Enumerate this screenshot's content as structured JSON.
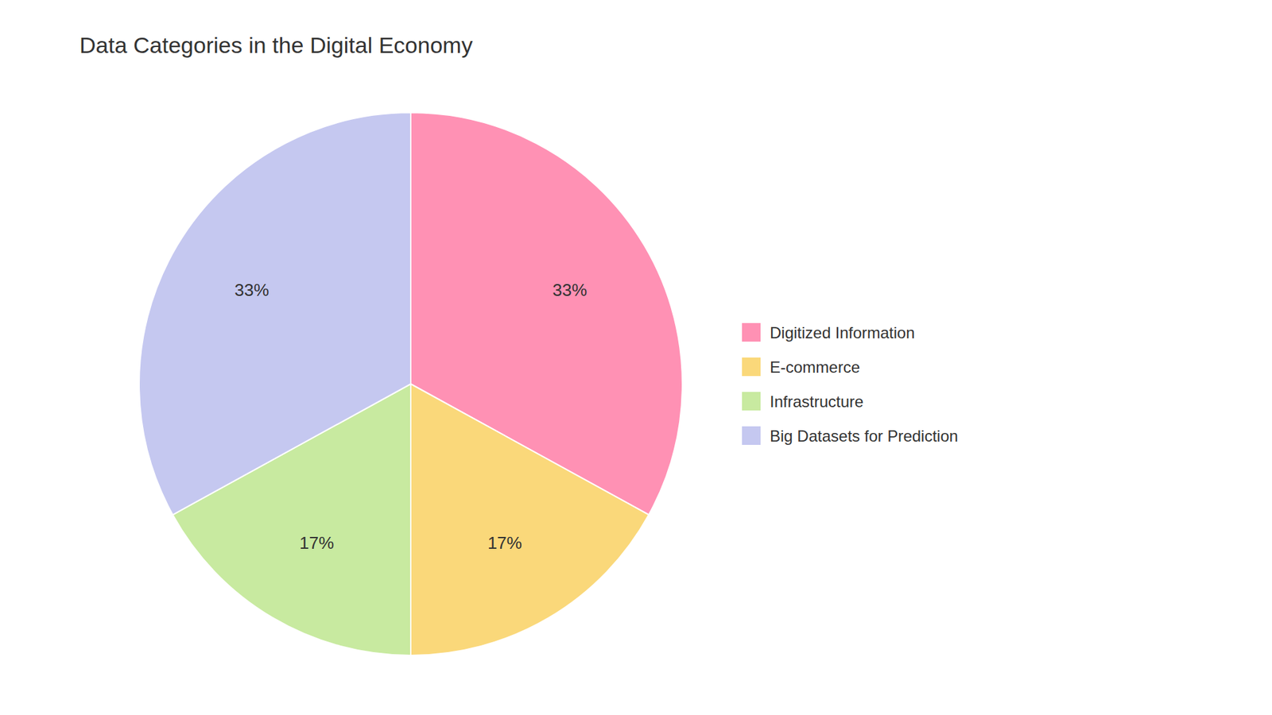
{
  "chart_data": {
    "type": "pie",
    "title": "Data Categories in the Digital Economy",
    "categories": [
      "Digitized Information",
      "E-commerce",
      "Infrastructure",
      "Big Datasets for Prediction"
    ],
    "values": [
      33,
      17,
      17,
      33
    ],
    "value_labels": [
      "33%",
      "17%",
      "17%",
      "33%"
    ],
    "colors": [
      "#FF91B4",
      "#FAD87A",
      "#C8EAA0",
      "#C5C8F0"
    ],
    "data_labels": true,
    "legend": "right"
  }
}
